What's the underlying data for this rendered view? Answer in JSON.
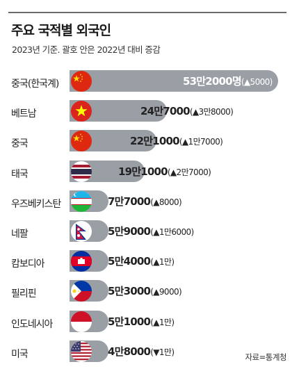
{
  "title": "주요 국적별 외국인",
  "subtitle": "2023년 기준. 괄호 안은 2022년 대비 증감",
  "source": "자료=통계청",
  "chart_data": {
    "type": "bar",
    "orientation": "horizontal",
    "title": "주요 국적별 외국인",
    "subtitle": "2023년 기준. 괄호 안은 2022년 대비 증감",
    "categories": [
      "중국(한국계)",
      "베트남",
      "중국",
      "태국",
      "우즈베키스탄",
      "네팔",
      "캄보디아",
      "필리핀",
      "인도네시아",
      "미국"
    ],
    "values": [
      532000,
      247000,
      221000,
      191000,
      77000,
      59000,
      54000,
      53000,
      51000,
      48000
    ],
    "value_labels": [
      "53만2000명",
      "24만7000",
      "22만1000",
      "19만1000",
      "7만7000",
      "5만9000",
      "5만4000",
      "5만3000",
      "5만1000",
      "4만8000"
    ],
    "change_labels": [
      "(▲5000)",
      "(▲3만8000)",
      "(▲1만7000)",
      "(▲2만7000)",
      "(▲8000)",
      "(▲1만6000)",
      "(▲1만)",
      "(▲9000)",
      "(▲1만)",
      "(▼1만)"
    ],
    "changes": [
      5000,
      38000,
      17000,
      27000,
      8000,
      16000,
      10000,
      9000,
      10000,
      -10000
    ],
    "flags": [
      "china-flag",
      "vietnam-flag",
      "china-flag",
      "thailand-flag",
      "uzbekistan-flag",
      "nepal-flag",
      "cambodia-flag",
      "philippines-flag",
      "indonesia-flag",
      "usa-flag"
    ],
    "bar_color": "#9a9ea5",
    "xlim": [
      0,
      540000
    ]
  }
}
